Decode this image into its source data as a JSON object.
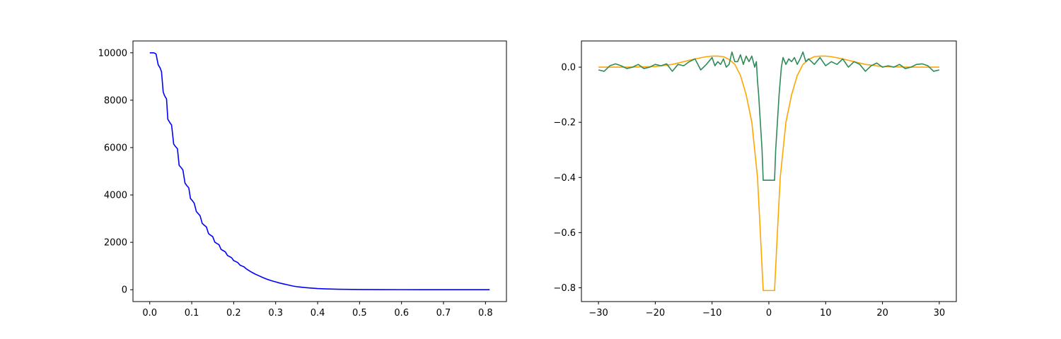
{
  "chart_data": [
    {
      "type": "line",
      "title": "",
      "xlabel": "",
      "ylabel": "",
      "xlim": [
        -0.04,
        0.85
      ],
      "ylim": [
        -500,
        10500
      ],
      "grid": false,
      "x_ticks": [
        0.0,
        0.1,
        0.2,
        0.3,
        0.4,
        0.5,
        0.6,
        0.7,
        0.8
      ],
      "x_tick_labels": [
        "0.0",
        "0.1",
        "0.2",
        "0.3",
        "0.4",
        "0.5",
        "0.6",
        "0.7",
        "0.8"
      ],
      "y_ticks": [
        0,
        2000,
        4000,
        6000,
        8000,
        10000
      ],
      "y_tick_labels": [
        "0",
        "2000",
        "4000",
        "6000",
        "8000",
        "10000"
      ],
      "series": [
        {
          "color": "#0000ff",
          "x": [
            0.0,
            0.01,
            0.015,
            0.02,
            0.025,
            0.028,
            0.032,
            0.035,
            0.04,
            0.043,
            0.048,
            0.052,
            0.057,
            0.061,
            0.066,
            0.07,
            0.075,
            0.079,
            0.084,
            0.088,
            0.093,
            0.097,
            0.102,
            0.106,
            0.111,
            0.115,
            0.12,
            0.125,
            0.13,
            0.135,
            0.14,
            0.145,
            0.15,
            0.155,
            0.16,
            0.165,
            0.17,
            0.175,
            0.18,
            0.185,
            0.19,
            0.195,
            0.2,
            0.205,
            0.21,
            0.215,
            0.22,
            0.225,
            0.23,
            0.24,
            0.25,
            0.26,
            0.27,
            0.28,
            0.29,
            0.3,
            0.31,
            0.32,
            0.33,
            0.34,
            0.35,
            0.36,
            0.37,
            0.38,
            0.4,
            0.42,
            0.45,
            0.5,
            0.55,
            0.6,
            0.65,
            0.7,
            0.75,
            0.81
          ],
          "y": [
            10000,
            10000,
            9950,
            9500,
            9350,
            9200,
            8350,
            8200,
            8050,
            7200,
            7050,
            6950,
            6150,
            6050,
            5950,
            5250,
            5150,
            5050,
            4500,
            4400,
            4300,
            3850,
            3750,
            3650,
            3300,
            3220,
            3120,
            2800,
            2720,
            2650,
            2370,
            2300,
            2240,
            2010,
            1950,
            1900,
            1700,
            1650,
            1600,
            1450,
            1400,
            1350,
            1230,
            1190,
            1140,
            1040,
            1000,
            960,
            880,
            770,
            670,
            590,
            510,
            440,
            380,
            330,
            280,
            240,
            200,
            160,
            130,
            110,
            90,
            75,
            50,
            35,
            20,
            10,
            6,
            3,
            2,
            1,
            0,
            0
          ]
        }
      ]
    },
    {
      "type": "line",
      "title": "",
      "xlabel": "",
      "ylabel": "",
      "xlim": [
        -33,
        33
      ],
      "ylim": [
        -0.85,
        0.095
      ],
      "grid": false,
      "x_ticks": [
        -30,
        -20,
        -10,
        0,
        10,
        20,
        30
      ],
      "x_tick_labels": [
        "−30",
        "−20",
        "−10",
        "0",
        "10",
        "20",
        "30"
      ],
      "y_ticks": [
        0.0,
        -0.2,
        -0.4,
        -0.6,
        -0.8
      ],
      "y_tick_labels": [
        "0.0",
        "−0.2",
        "−0.4",
        "−0.6",
        "−0.8"
      ],
      "series": [
        {
          "color": "#ffa500",
          "x": [
            -30,
            -25,
            -20,
            -17,
            -15,
            -13,
            -11,
            -10,
            -9,
            -8,
            -7,
            -6,
            -5,
            -4,
            -3,
            -2,
            -1.5,
            -1,
            1,
            1.5,
            2,
            3,
            4,
            5,
            6,
            7,
            8,
            9,
            10,
            11,
            13,
            15,
            17,
            20,
            25,
            30
          ],
          "y": [
            0.0,
            0.0,
            0.002,
            0.01,
            0.02,
            0.03,
            0.038,
            0.04,
            0.04,
            0.038,
            0.028,
            0.01,
            -0.03,
            -0.1,
            -0.2,
            -0.4,
            -0.6,
            -0.81,
            -0.81,
            -0.6,
            -0.4,
            -0.2,
            -0.1,
            -0.03,
            0.01,
            0.028,
            0.038,
            0.04,
            0.04,
            0.038,
            0.03,
            0.02,
            0.01,
            0.002,
            0.0,
            0.0
          ],
          "step_hint": "smooth"
        },
        {
          "color": "#2e8b57",
          "x": [
            -30,
            -29,
            -28,
            -27,
            -26,
            -25,
            -24,
            -23,
            -22,
            -21,
            -20,
            -19,
            -18,
            -17,
            -16,
            -15,
            -14,
            -13,
            -12,
            -11,
            -10,
            -9.5,
            -9,
            -8.5,
            -8,
            -7.5,
            -7,
            -6.5,
            -6,
            -5.5,
            -5,
            -4.5,
            -4,
            -3.5,
            -3,
            -2.5,
            -2.2,
            -2,
            -1.8,
            -1.5,
            -1.2,
            -1,
            0,
            1,
            1.2,
            1.5,
            1.8,
            2,
            2.2,
            2.5,
            3,
            3.5,
            4,
            4.5,
            5,
            5.5,
            6,
            6.5,
            7,
            8,
            9,
            10,
            11,
            12,
            13,
            14,
            15,
            16,
            17,
            18,
            19,
            20,
            21,
            22,
            23,
            24,
            25,
            26,
            27,
            28,
            29,
            30
          ],
          "y": [
            -0.01,
            -0.015,
            0.005,
            0.012,
            0.005,
            -0.005,
            0.0,
            0.01,
            -0.005,
            0.0,
            0.01,
            0.005,
            0.012,
            -0.015,
            0.01,
            0.005,
            0.02,
            0.03,
            -0.01,
            0.01,
            0.035,
            0.005,
            0.02,
            0.01,
            0.03,
            0.0,
            0.01,
            0.055,
            0.02,
            0.02,
            0.045,
            0.01,
            0.04,
            0.02,
            0.04,
            0.0,
            0.02,
            -0.05,
            -0.1,
            -0.2,
            -0.3,
            -0.41,
            -0.41,
            -0.41,
            -0.3,
            -0.2,
            -0.1,
            -0.05,
            0.0,
            0.035,
            0.01,
            0.03,
            0.02,
            0.035,
            0.01,
            0.03,
            0.055,
            0.02,
            0.03,
            0.01,
            0.035,
            0.005,
            0.02,
            0.01,
            0.03,
            0.0,
            0.02,
            0.01,
            -0.015,
            0.005,
            0.015,
            0.0,
            0.005,
            0.0,
            0.01,
            -0.005,
            0.0,
            0.01,
            0.012,
            0.005,
            -0.015,
            -0.01
          ]
        }
      ]
    }
  ]
}
